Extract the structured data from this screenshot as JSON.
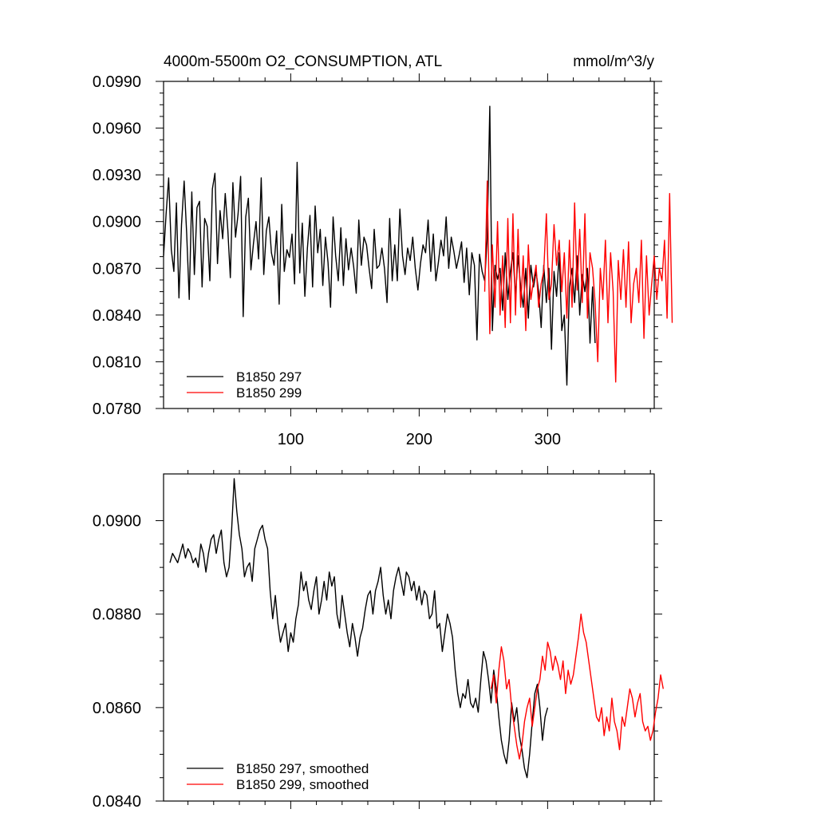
{
  "chart_data": [
    {
      "type": "line",
      "title": "4000m-5500m O2_CONSUMPTION, ATL",
      "units": "mmol/m^3/y",
      "xlim": [
        1,
        383
      ],
      "ylim": [
        0.078,
        0.099
      ],
      "x_ticks": [
        100,
        200,
        300
      ],
      "x_tick_labels": [
        "100",
        "200",
        "300"
      ],
      "y_ticks": [
        0.078,
        0.081,
        0.084,
        0.087,
        0.09,
        0.093,
        0.096,
        0.099
      ],
      "y_tick_labels": [
        "0.0780",
        "0.0810",
        "0.0840",
        "0.0870",
        "0.0900",
        "0.0930",
        "0.0960",
        "0.0990"
      ],
      "legend": "bottom-left",
      "series": [
        {
          "name": "B1850 297",
          "color": "#000000",
          "x_start": 1,
          "x_step": 2,
          "values": [
            0.0878,
            0.0905,
            0.0928,
            0.0882,
            0.0868,
            0.0912,
            0.0851,
            0.0898,
            0.0926,
            0.0892,
            0.085,
            0.0919,
            0.0866,
            0.0909,
            0.0913,
            0.0858,
            0.0902,
            0.0897,
            0.0862,
            0.0921,
            0.0931,
            0.0873,
            0.0907,
            0.0889,
            0.0918,
            0.0895,
            0.0864,
            0.0925,
            0.089,
            0.0905,
            0.0929,
            0.0839,
            0.0903,
            0.0915,
            0.0869,
            0.0886,
            0.09,
            0.0876,
            0.0928,
            0.0866,
            0.0894,
            0.0903,
            0.088,
            0.0872,
            0.0894,
            0.0847,
            0.0911,
            0.0868,
            0.0882,
            0.0877,
            0.0892,
            0.086,
            0.0938,
            0.0867,
            0.0899,
            0.0852,
            0.0883,
            0.0904,
            0.0858,
            0.091,
            0.088,
            0.0895,
            0.0859,
            0.089,
            0.0874,
            0.0845,
            0.0903,
            0.0878,
            0.0862,
            0.0896,
            0.0859,
            0.0889,
            0.0869,
            0.0883,
            0.0871,
            0.0854,
            0.0901,
            0.0872,
            0.089,
            0.0885,
            0.087,
            0.0857,
            0.0895,
            0.087,
            0.0872,
            0.0883,
            0.087,
            0.0848,
            0.0902,
            0.0862,
            0.0885,
            0.0862,
            0.0908,
            0.0878,
            0.0866,
            0.0883,
            0.0875,
            0.089,
            0.087,
            0.0856,
            0.0873,
            0.0885,
            0.088,
            0.0901,
            0.0868,
            0.0892,
            0.0862,
            0.0874,
            0.0888,
            0.0878,
            0.0903,
            0.087,
            0.089,
            0.0881,
            0.087,
            0.0878,
            0.0887,
            0.0861,
            0.0883,
            0.0853,
            0.088,
            0.0872,
            0.0824,
            0.0879,
            0.0868,
            0.0862,
            0.089,
            0.0974,
            0.083,
            0.0872,
            0.0863,
            0.087,
            0.0843,
            0.088,
            0.085,
            0.0868,
            0.088,
            0.0852,
            0.0878,
            0.0858,
            0.0845,
            0.087,
            0.0838,
            0.0872,
            0.0858,
            0.0868,
            0.0855,
            0.0832,
            0.0872,
            0.0848,
            0.087,
            0.0818,
            0.0868,
            0.0852,
            0.088,
            0.083,
            0.084,
            0.0795,
            0.0858,
            0.087,
            0.0848,
            0.0878,
            0.084,
            0.0866,
            0.0855,
            0.087,
            0.0822,
            0.0858,
            0.0822
          ]
        },
        {
          "name": "B1850 299",
          "color": "#ff0000",
          "x_start": 251,
          "x_step": 2,
          "values": [
            0.0855,
            0.0926,
            0.0828,
            0.0885,
            0.0845,
            0.09,
            0.084,
            0.0878,
            0.0832,
            0.0902,
            0.0835,
            0.0905,
            0.084,
            0.0895,
            0.0845,
            0.0878,
            0.083,
            0.0885,
            0.085,
            0.0862,
            0.0872,
            0.0845,
            0.086,
            0.0868,
            0.0905,
            0.085,
            0.086,
            0.0898,
            0.0872,
            0.0888,
            0.0855,
            0.088,
            0.0838,
            0.0888,
            0.0845,
            0.0912,
            0.0856,
            0.0895,
            0.0848,
            0.0905,
            0.0838,
            0.088,
            0.087,
            0.0848,
            0.081,
            0.087,
            0.085,
            0.0888,
            0.0835,
            0.088,
            0.0855,
            0.0797,
            0.0875,
            0.085,
            0.0882,
            0.0845,
            0.0887,
            0.0835,
            0.086,
            0.087,
            0.0848,
            0.0888,
            0.0825,
            0.0878,
            0.084,
            0.086,
            0.0878,
            0.085,
            0.087,
            0.0862,
            0.0888,
            0.0838,
            0.0918,
            0.0835
          ]
        }
      ]
    },
    {
      "type": "line",
      "xlim": [
        1,
        383
      ],
      "ylim": [
        0.084,
        0.091
      ],
      "x_ticks": [
        100,
        200,
        300
      ],
      "y_ticks": [
        0.084,
        0.086,
        0.088,
        0.09
      ],
      "y_tick_labels": [
        "0.0840",
        "0.0860",
        "0.0880",
        "0.0900"
      ],
      "legend": "bottom-left",
      "series": [
        {
          "name": "B1850 297, smoothed",
          "color": "#000000",
          "x_start": 6,
          "x_step": 2,
          "values": [
            0.0891,
            0.0893,
            0.0892,
            0.0891,
            0.0893,
            0.0895,
            0.0892,
            0.0894,
            0.0893,
            0.0891,
            0.0892,
            0.089,
            0.0895,
            0.0893,
            0.0889,
            0.0893,
            0.0896,
            0.0897,
            0.0893,
            0.0896,
            0.0898,
            0.0891,
            0.0888,
            0.089,
            0.0898,
            0.0909,
            0.0902,
            0.0897,
            0.0894,
            0.0888,
            0.089,
            0.0891,
            0.0887,
            0.0894,
            0.0896,
            0.0898,
            0.0899,
            0.0896,
            0.0894,
            0.0885,
            0.0879,
            0.0884,
            0.0878,
            0.0874,
            0.0876,
            0.0878,
            0.0872,
            0.0876,
            0.0874,
            0.0879,
            0.0882,
            0.0889,
            0.0885,
            0.0887,
            0.0883,
            0.0881,
            0.0885,
            0.0888,
            0.088,
            0.0883,
            0.0887,
            0.0883,
            0.0889,
            0.0886,
            0.0888,
            0.088,
            0.0877,
            0.0884,
            0.088,
            0.0876,
            0.0873,
            0.0878,
            0.0875,
            0.0871,
            0.0875,
            0.0877,
            0.0881,
            0.0884,
            0.0885,
            0.088,
            0.0885,
            0.0887,
            0.089,
            0.0884,
            0.088,
            0.0883,
            0.0879,
            0.0885,
            0.0888,
            0.089,
            0.0887,
            0.0884,
            0.0889,
            0.0888,
            0.0885,
            0.0887,
            0.0883,
            0.0886,
            0.0882,
            0.0885,
            0.0884,
            0.0879,
            0.088,
            0.0885,
            0.0877,
            0.0878,
            0.0872,
            0.0876,
            0.088,
            0.0878,
            0.0875,
            0.0868,
            0.0863,
            0.086,
            0.0863,
            0.0862,
            0.0866,
            0.0861,
            0.086,
            0.0862,
            0.0859,
            0.0866,
            0.0872,
            0.087,
            0.0866,
            0.0861,
            0.0868,
            0.0864,
            0.0858,
            0.0853,
            0.085,
            0.0848,
            0.0853,
            0.0861,
            0.0857,
            0.086,
            0.0854,
            0.0851,
            0.0847,
            0.0845,
            0.085,
            0.0857,
            0.0863,
            0.0865,
            0.086,
            0.0853,
            0.0858,
            0.086
          ]
        },
        {
          "name": "B1850 299, smoothed",
          "color": "#ff0000",
          "x_start": 256,
          "x_step": 2,
          "values": [
            0.0864,
            0.0867,
            0.0861,
            0.0868,
            0.0873,
            0.087,
            0.0864,
            0.0866,
            0.086,
            0.0856,
            0.0852,
            0.0849,
            0.0852,
            0.0857,
            0.086,
            0.0862,
            0.0856,
            0.086,
            0.0864,
            0.0866,
            0.0871,
            0.0868,
            0.0874,
            0.0872,
            0.0868,
            0.0871,
            0.0869,
            0.0866,
            0.087,
            0.0863,
            0.0868,
            0.0865,
            0.0867,
            0.0871,
            0.0875,
            0.088,
            0.0876,
            0.0874,
            0.087,
            0.0866,
            0.0862,
            0.0858,
            0.0857,
            0.086,
            0.0854,
            0.0858,
            0.0855,
            0.0862,
            0.0857,
            0.0855,
            0.0851,
            0.0858,
            0.0856,
            0.086,
            0.0864,
            0.0862,
            0.0858,
            0.0861,
            0.0863,
            0.0857,
            0.0855,
            0.0856,
            0.0853,
            0.0855,
            0.0859,
            0.0862,
            0.0867,
            0.0864
          ]
        }
      ]
    }
  ]
}
